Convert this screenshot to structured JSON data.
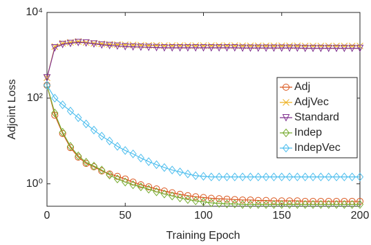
{
  "chart_data": {
    "type": "line",
    "xlabel": "Training Epoch",
    "ylabel": "Adjoint Loss",
    "log_y": true,
    "legend": "right",
    "x": [
      0,
      5,
      10,
      15,
      20,
      25,
      30,
      35,
      40,
      45,
      50,
      55,
      60,
      65,
      70,
      75,
      80,
      85,
      90,
      95,
      100,
      105,
      110,
      115,
      120,
      125,
      130,
      135,
      140,
      145,
      150,
      155,
      160,
      165,
      170,
      175,
      180,
      185,
      190,
      195,
      200
    ],
    "xlim": [
      0,
      200
    ],
    "xticks": [
      0,
      50,
      100,
      150,
      200
    ],
    "ylim": [
      0.3,
      10000
    ],
    "yticks": [
      {
        "value": 1,
        "label": "10⁰"
      },
      {
        "value": 100,
        "label": "10²"
      },
      {
        "value": 10000,
        "label": "10⁴"
      }
    ],
    "series": [
      {
        "name": "Adj",
        "color": "#d95319",
        "marker": "circle",
        "values": [
          200,
          40,
          15,
          7,
          4.2,
          3,
          2.5,
          2,
          1.7,
          1.5,
          1.3,
          1.1,
          0.95,
          0.85,
          0.76,
          0.68,
          0.62,
          0.57,
          0.53,
          0.5,
          0.48,
          0.46,
          0.45,
          0.44,
          0.43,
          0.42,
          0.42,
          0.41,
          0.41,
          0.4,
          0.4,
          0.4,
          0.4,
          0.39,
          0.39,
          0.39,
          0.39,
          0.39,
          0.39,
          0.39,
          0.39
        ]
      },
      {
        "name": "AdjVec",
        "color": "#edb120",
        "marker": "x",
        "values": [
          300,
          1600,
          1900,
          2000,
          2100,
          2000,
          1900,
          1850,
          1800,
          1780,
          1760,
          1740,
          1720,
          1700,
          1700,
          1680,
          1680,
          1680,
          1680,
          1680,
          1680,
          1680,
          1680,
          1680,
          1680,
          1660,
          1660,
          1660,
          1660,
          1660,
          1660,
          1660,
          1660,
          1650,
          1650,
          1650,
          1650,
          1650,
          1650,
          1650,
          1650
        ]
      },
      {
        "name": "Standard",
        "color": "#7e2f8e",
        "marker": "triangle",
        "values": [
          300,
          1500,
          1800,
          1900,
          2000,
          1950,
          1850,
          1750,
          1700,
          1650,
          1600,
          1580,
          1560,
          1540,
          1520,
          1500,
          1500,
          1500,
          1500,
          1500,
          1500,
          1500,
          1500,
          1500,
          1500,
          1480,
          1480,
          1480,
          1480,
          1480,
          1480,
          1480,
          1480,
          1460,
          1460,
          1460,
          1460,
          1460,
          1460,
          1460,
          1460
        ]
      },
      {
        "name": "Indep",
        "color": "#77ac30",
        "marker": "diamond",
        "values": [
          200,
          45,
          16,
          7.5,
          4.5,
          3.2,
          2.6,
          2.1,
          1.6,
          1.3,
          1.1,
          0.95,
          0.85,
          0.75,
          0.65,
          0.58,
          0.52,
          0.47,
          0.43,
          0.4,
          0.38,
          0.36,
          0.35,
          0.34,
          0.34,
          0.33,
          0.33,
          0.33,
          0.33,
          0.33,
          0.33,
          0.33,
          0.33,
          0.33,
          0.33,
          0.33,
          0.33,
          0.33,
          0.33,
          0.33,
          0.33
        ]
      },
      {
        "name": "IndepVec",
        "color": "#4dbeee",
        "marker": "diamond",
        "values": [
          200,
          100,
          70,
          50,
          35,
          25,
          18,
          13,
          10,
          7.5,
          6,
          5,
          4,
          3.3,
          2.8,
          2.4,
          2.1,
          1.9,
          1.7,
          1.55,
          1.5,
          1.45,
          1.45,
          1.45,
          1.45,
          1.45,
          1.45,
          1.45,
          1.45,
          1.45,
          1.45,
          1.45,
          1.45,
          1.45,
          1.45,
          1.45,
          1.45,
          1.45,
          1.45,
          1.45,
          1.45
        ]
      }
    ]
  }
}
